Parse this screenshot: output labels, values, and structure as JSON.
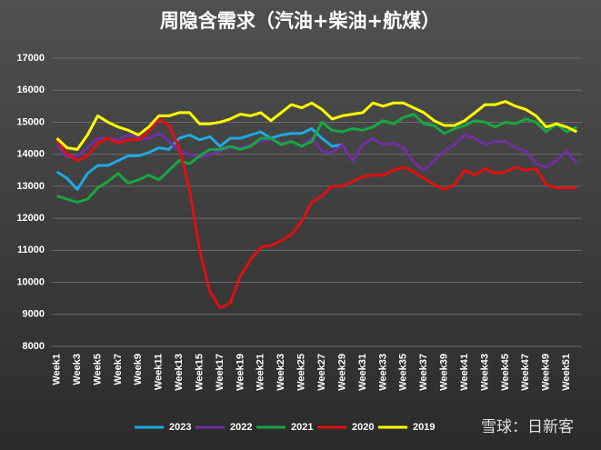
{
  "chart_data": {
    "type": "line",
    "title": "周隐含需求（汽油+柴油+航煤）",
    "watermark": "雪球：日新客",
    "categories": [
      "Week1",
      null,
      "Week3",
      null,
      "Week5",
      null,
      "Week7",
      null,
      "Week9",
      null,
      "Week11",
      null,
      "Week13",
      null,
      "Week15",
      null,
      "Week17",
      null,
      "Week19",
      null,
      "Week21",
      null,
      "Week23",
      null,
      "Week25",
      null,
      "Week27",
      null,
      "Week29",
      null,
      "Week31",
      null,
      "Week33",
      null,
      "Week35",
      null,
      "Week37",
      null,
      "Week39",
      null,
      "Week41",
      null,
      "Week43",
      null,
      "Week45",
      null,
      "Week47",
      null,
      "Week49",
      null,
      "Week51",
      null
    ],
    "ylim": [
      8000,
      17000
    ],
    "yticks": [
      8000,
      9000,
      10000,
      11000,
      12000,
      13000,
      14000,
      15000,
      16000,
      17000
    ],
    "grid": true,
    "legend": "bottom",
    "series": [
      {
        "name": "2023",
        "color": "#1fa9e1",
        "values": [
          13450,
          13250,
          12900,
          13400,
          13650,
          13650,
          13800,
          13950,
          13950,
          14050,
          14200,
          14150,
          14500,
          14600,
          14450,
          14550,
          14250,
          14500,
          14500,
          14600,
          14700,
          14500,
          14600,
          14650,
          14650,
          14800,
          14500,
          14250,
          14300,
          null,
          null,
          null,
          null,
          null,
          null,
          null,
          null,
          null,
          null,
          null,
          null,
          null,
          null,
          null,
          null,
          null,
          null,
          null,
          null,
          null,
          null,
          null
        ]
      },
      {
        "name": "2022",
        "color": "#7030a0",
        "values": [
          14300,
          13900,
          13950,
          14200,
          14500,
          14500,
          14450,
          14600,
          14500,
          14500,
          14650,
          14400,
          14100,
          14000,
          13900,
          14000,
          14100,
          14200,
          14200,
          14300,
          14400,
          14450,
          14350,
          14400,
          14250,
          14500,
          14100,
          14050,
          14300,
          13800,
          14300,
          14500,
          14300,
          14350,
          14200,
          13750,
          13500,
          13800,
          14100,
          14300,
          14600,
          14500,
          14300,
          14400,
          14400,
          14200,
          14100,
          13700,
          13600,
          13800,
          14100,
          13700
        ]
      },
      {
        "name": "2021",
        "color": "#16a843",
        "values": [
          12700,
          12600,
          12500,
          12600,
          12950,
          13150,
          13400,
          13100,
          13200,
          13350,
          13200,
          13500,
          13800,
          13700,
          13950,
          14150,
          14150,
          14250,
          14150,
          14250,
          14500,
          14500,
          14300,
          14400,
          14250,
          14400,
          15000,
          14750,
          14700,
          14800,
          14750,
          14850,
          15050,
          14950,
          15150,
          15250,
          14950,
          14900,
          14650,
          14800,
          14900,
          15050,
          15000,
          14850,
          15000,
          14950,
          15100,
          15000,
          14700,
          14950,
          14700,
          14850
        ]
      },
      {
        "name": "2020",
        "color": "#e01010",
        "values": [
          14450,
          14000,
          13800,
          13950,
          14350,
          14500,
          14350,
          14450,
          14450,
          14700,
          15100,
          14900,
          14200,
          12900,
          11000,
          9700,
          9200,
          9350,
          10200,
          10700,
          11100,
          11150,
          11300,
          11500,
          11900,
          12500,
          12700,
          13000,
          13000,
          13150,
          13300,
          13350,
          13350,
          13500,
          13600,
          13450,
          13250,
          13050,
          12900,
          13050,
          13500,
          13350,
          13550,
          13400,
          13450,
          13600,
          13500,
          13550,
          13050,
          12950,
          12950,
          12950
        ]
      },
      {
        "name": "2019",
        "color": "#ffff00",
        "values": [
          14500,
          14200,
          14150,
          14600,
          15200,
          15000,
          14850,
          14750,
          14600,
          14850,
          15200,
          15200,
          15300,
          15300,
          14950,
          14950,
          15000,
          15100,
          15250,
          15200,
          15300,
          15050,
          15300,
          15550,
          15450,
          15600,
          15400,
          15100,
          15200,
          15250,
          15300,
          15600,
          15500,
          15600,
          15600,
          15450,
          15300,
          15050,
          14900,
          14900,
          15050,
          15300,
          15550,
          15550,
          15650,
          15500,
          15400,
          15200,
          14850,
          14950,
          14850,
          14700
        ]
      }
    ]
  }
}
